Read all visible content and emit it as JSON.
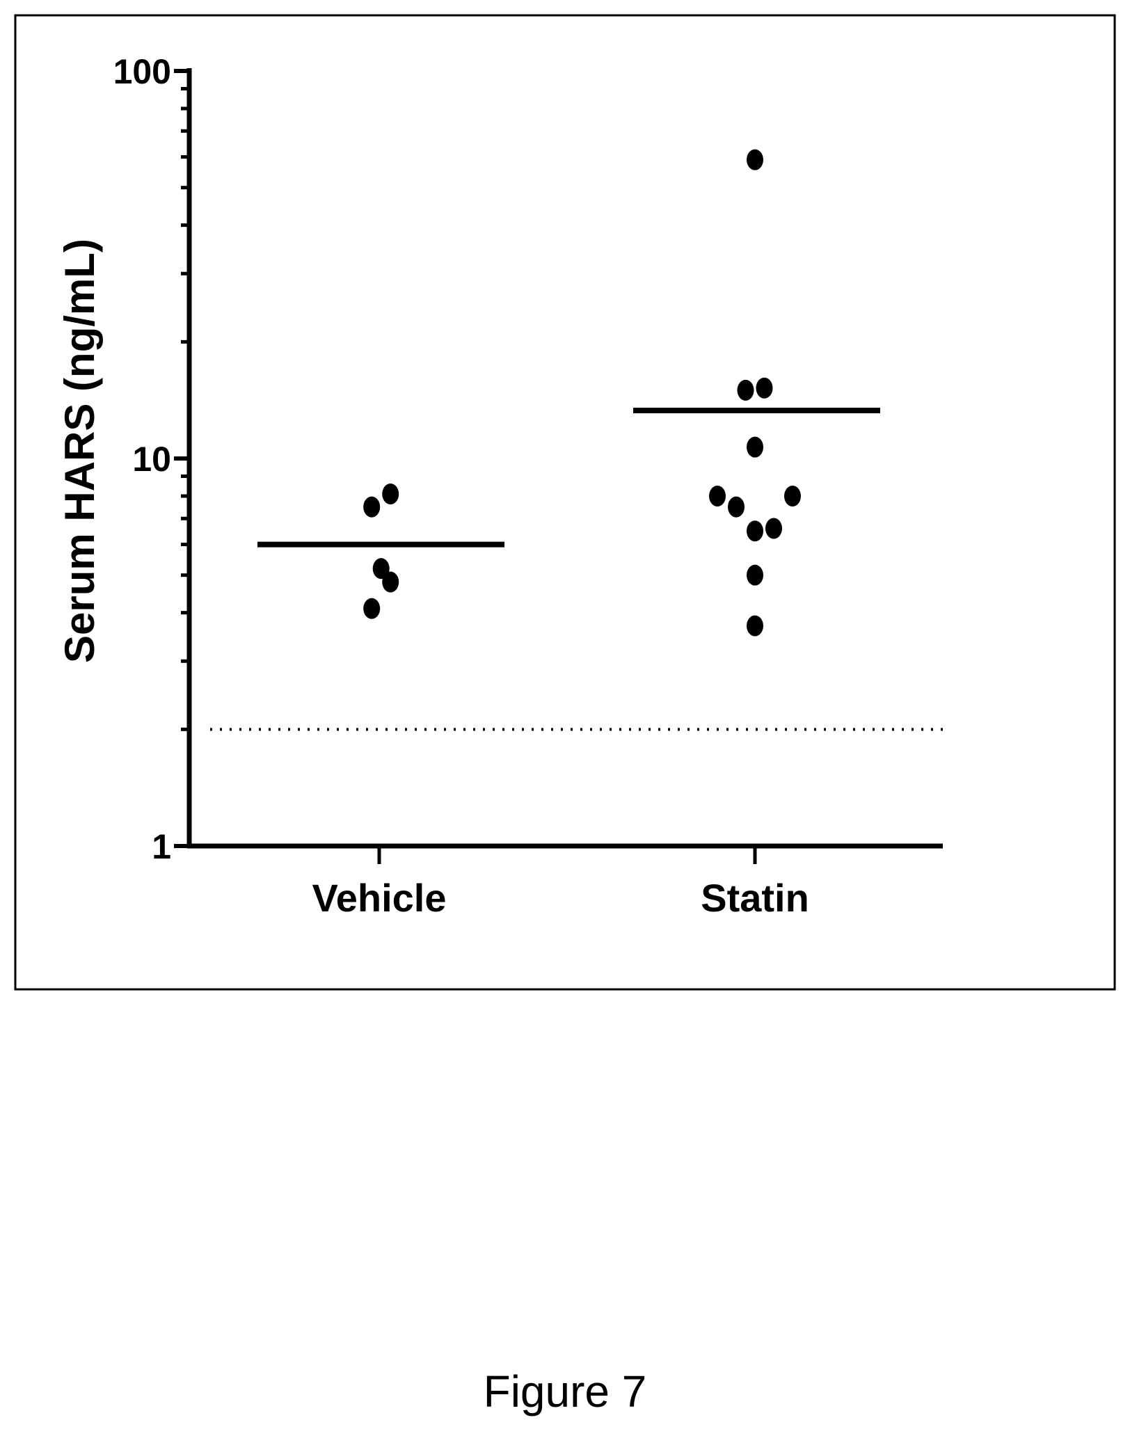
{
  "caption": "Figure 7",
  "colors": {
    "ink": "#000000",
    "background": "#ffffff"
  },
  "chart_data": {
    "type": "scatter",
    "title": "",
    "xlabel": "",
    "ylabel": "Serum HARS (ng/mL)",
    "yscale": "log",
    "ylim": [
      1,
      100
    ],
    "y_tick_labels": [
      "1",
      "10",
      "100"
    ],
    "categories": [
      "Vehicle",
      "Statin"
    ],
    "reference_line": {
      "y": 2,
      "style": "dotted"
    },
    "grid": false,
    "legend": "none",
    "series": [
      {
        "category": "Vehicle",
        "points": [
          {
            "offset": -0.04,
            "y": 7.5
          },
          {
            "offset": 0.06,
            "y": 8.1
          },
          {
            "offset": 0.01,
            "y": 5.2
          },
          {
            "offset": 0.06,
            "y": 4.8
          },
          {
            "offset": -0.04,
            "y": 4.1
          }
        ],
        "mean": 6.0
      },
      {
        "category": "Statin",
        "points": [
          {
            "offset": 0.0,
            "y": 59
          },
          {
            "offset": -0.05,
            "y": 15.0
          },
          {
            "offset": 0.05,
            "y": 15.2
          },
          {
            "offset": 0.0,
            "y": 10.7
          },
          {
            "offset": -0.2,
            "y": 8.0
          },
          {
            "offset": -0.1,
            "y": 7.5
          },
          {
            "offset": 0.2,
            "y": 8.0
          },
          {
            "offset": 0.0,
            "y": 6.5
          },
          {
            "offset": 0.1,
            "y": 6.6
          },
          {
            "offset": 0.0,
            "y": 5.0
          },
          {
            "offset": 0.0,
            "y": 3.7
          }
        ],
        "mean": 13.3
      }
    ]
  }
}
